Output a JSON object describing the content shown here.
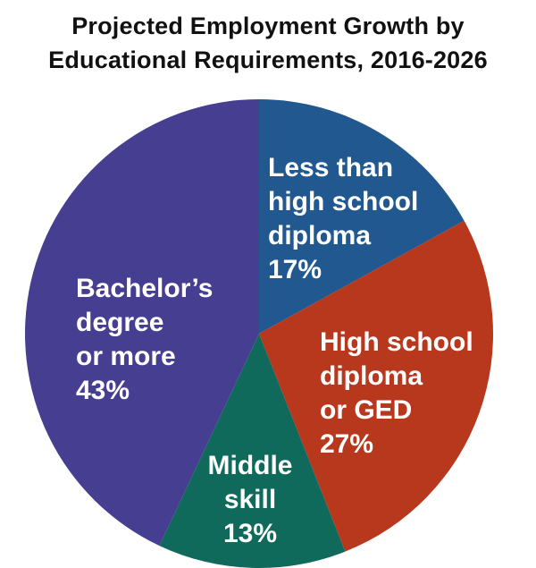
{
  "chart_data": {
    "type": "pie",
    "title_lines": [
      "Projected Employment Growth by",
      "Educational Requirements, 2016-2026"
    ],
    "slices": [
      {
        "label_lines": [
          "Less than",
          "high school",
          "diploma",
          "17%"
        ],
        "value": 17,
        "color": "#21588f",
        "name_key": "less-than-high-school"
      },
      {
        "label_lines": [
          "High school",
          "diploma",
          "or GED",
          "27%"
        ],
        "value": 27,
        "color": "#b8381e",
        "name_key": "high-school-or-ged"
      },
      {
        "label_lines": [
          "Middle",
          "skill",
          "13%"
        ],
        "value": 13,
        "color": "#0f6a5c",
        "name_key": "middle-skill"
      },
      {
        "label_lines": [
          "Bachelor’s",
          "degree",
          "or more",
          "43%"
        ],
        "value": 43,
        "color": "#463e91",
        "name_key": "bachelors-or-more"
      }
    ]
  }
}
